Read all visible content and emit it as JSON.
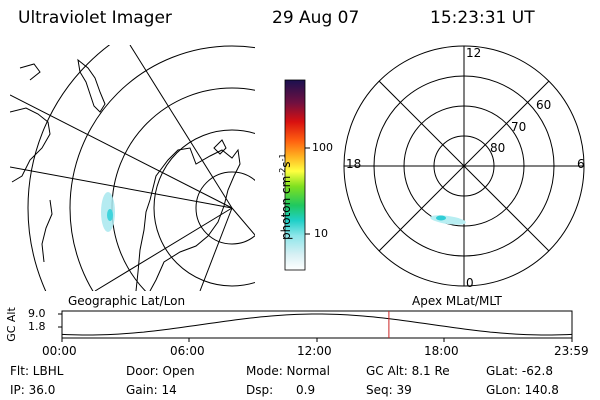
{
  "header": {
    "instrument": "Ultraviolet Imager",
    "date": "29 Aug 07",
    "time": "15:23:31 UT"
  },
  "left_panel": {
    "caption": "Geographic Lat/Lon"
  },
  "right_panel": {
    "caption": "Apex MLat/MLT",
    "mlt_labels": {
      "top": "12",
      "left": "18",
      "right": "6",
      "bottom": "0"
    },
    "mlat_labels": [
      "60",
      "70",
      "80"
    ]
  },
  "colorbar": {
    "unit_base": "photon cm",
    "exp1": "-2",
    "mid": "s",
    "exp2": "-1",
    "ticks": [
      "100",
      "10"
    ]
  },
  "timeline": {
    "ylabel": "GC Alt",
    "y_ticks": [
      "9.0",
      "1.8"
    ],
    "x_ticks": [
      "00:00",
      "06:00",
      "12:00",
      "18:00",
      "23:59"
    ],
    "marker_time": "15:23"
  },
  "status": {
    "row1": [
      "Flt: LBHL",
      "Door: Open",
      "Mode: Normal",
      "GC Alt: 8.1 Re",
      "GLat: -62.8"
    ],
    "row2": [
      "IP: 36.0",
      "Gain: 14",
      "Dsp:      0.9",
      "Seq: 39",
      "GLon: 140.8"
    ]
  },
  "colors": {
    "marker": "#cc2222",
    "aurora": "#7fe0e6"
  }
}
